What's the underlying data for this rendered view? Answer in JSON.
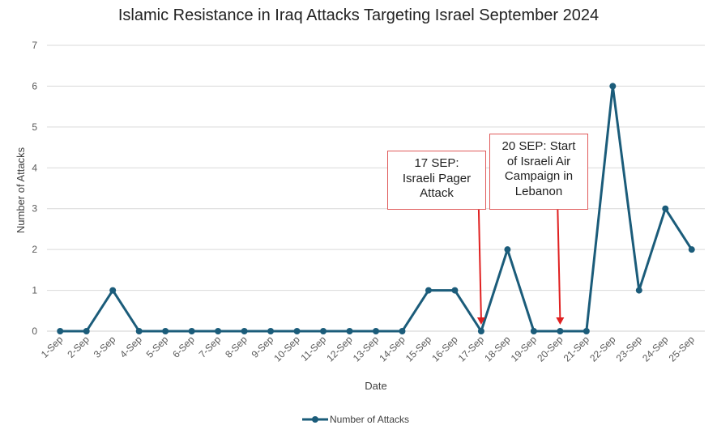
{
  "chart_data": {
    "type": "line",
    "title": "Islamic Resistance in Iraq Attacks Targeting Israel September 2024",
    "xlabel": "Date",
    "ylabel": "Number of Attacks",
    "ylim": [
      0,
      7
    ],
    "yticks": [
      0,
      1,
      2,
      3,
      4,
      5,
      6,
      7
    ],
    "grid": true,
    "legend_position": "bottom",
    "categories": [
      "1-Sep",
      "2-Sep",
      "3-Sep",
      "4-Sep",
      "5-Sep",
      "6-Sep",
      "7-Sep",
      "8-Sep",
      "9-Sep",
      "10-Sep",
      "11-Sep",
      "12-Sep",
      "13-Sep",
      "14-Sep",
      "15-Sep",
      "16-Sep",
      "17-Sep",
      "18-Sep",
      "19-Sep",
      "20-Sep",
      "21-Sep",
      "22-Sep",
      "23-Sep",
      "24-Sep",
      "25-Sep"
    ],
    "series": [
      {
        "name": "Number of Attacks",
        "color": "#1b5c7a",
        "values": [
          0,
          0,
          1,
          0,
          0,
          0,
          0,
          0,
          0,
          0,
          0,
          0,
          0,
          0,
          1,
          1,
          0,
          2,
          0,
          0,
          0,
          6,
          1,
          3,
          2
        ]
      }
    ],
    "annotations": [
      {
        "lines": [
          "17 SEP:",
          "Israeli Pager",
          "Attack"
        ],
        "target": "17-Sep",
        "target_value": 0,
        "color": "#e02020"
      },
      {
        "lines": [
          "20 SEP: Start",
          "of Israeli Air",
          "Campaign in",
          "Lebanon"
        ],
        "target": "20-Sep",
        "target_value": 0,
        "color": "#e02020"
      }
    ]
  }
}
